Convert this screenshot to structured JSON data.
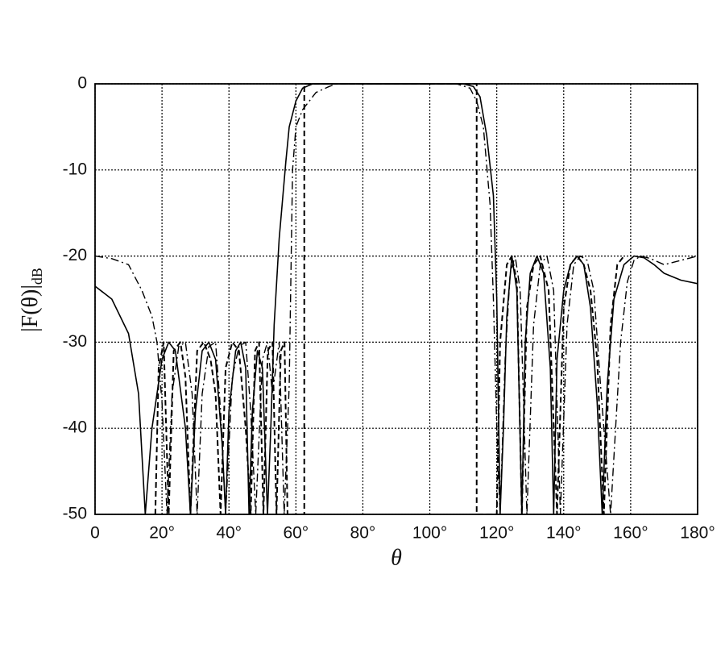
{
  "chart_data": {
    "type": "line",
    "xlabel": "θ",
    "ylabel": "|F(θ)|",
    "ylabel_subscript": "dB",
    "xlim": [
      0,
      180
    ],
    "ylim": [
      -50,
      0
    ],
    "xticks": [
      0,
      {
        "value": 20,
        "label": "20°"
      },
      {
        "value": 40,
        "label": "40°"
      },
      {
        "value": 60,
        "label": "60°"
      },
      {
        "value": 80,
        "label": "80°"
      },
      {
        "value": 100,
        "label": "100°"
      },
      {
        "value": 120,
        "label": "120°"
      },
      {
        "value": 140,
        "label": "140°"
      },
      {
        "value": 160,
        "label": "160°"
      },
      {
        "value": 180,
        "label": "180°"
      }
    ],
    "yticks": [
      0,
      -10,
      -20,
      -30,
      -40,
      -50
    ],
    "grid": true,
    "series": [
      {
        "color": "#000000",
        "dash": "solid",
        "width": 1.6,
        "x": [
          0,
          5,
          10,
          13,
          15,
          17,
          20,
          22,
          24,
          27,
          28.5,
          30,
          32,
          34,
          36,
          38,
          39,
          40,
          42,
          43.5,
          45,
          46,
          47,
          48.5,
          50,
          51.5,
          52.5,
          53.5,
          55,
          57,
          58,
          60,
          62,
          65,
          110,
          113,
          115,
          117,
          119,
          120,
          121,
          122,
          123,
          124.5,
          126,
          127.5,
          128.5,
          130,
          132,
          134,
          136,
          137,
          138,
          140,
          142,
          144,
          146,
          148,
          150,
          151.5,
          153,
          155,
          158,
          161,
          164,
          167,
          170,
          175,
          180
        ],
        "values": [
          -23.5,
          -25,
          -29,
          -36,
          -50,
          -40,
          -32,
          -30,
          -31,
          -40,
          -50,
          -38,
          -31,
          -30,
          -32,
          -42,
          -50,
          -38,
          -31,
          -30,
          -33,
          -50,
          -38,
          -31,
          -33,
          -50,
          -40,
          -28,
          -18,
          -9,
          -5,
          -2,
          -0.5,
          0,
          0,
          -0.3,
          -1.5,
          -6,
          -13,
          -25,
          -50,
          -40,
          -27,
          -20,
          -24,
          -50,
          -30,
          -22,
          -20,
          -22,
          -33,
          -50,
          -32,
          -24,
          -21,
          -20,
          -21,
          -26,
          -37,
          -50,
          -35,
          -25,
          -21,
          -20,
          -20.2,
          -21,
          -22,
          -22.8,
          -23.2
        ]
      },
      {
        "color": "#000000",
        "dash": "dashdot",
        "width": 1.4,
        "x": [
          0,
          5,
          10,
          14,
          17,
          18.5,
          20,
          21.5,
          23,
          25,
          27,
          29,
          30.5,
          32,
          34,
          36,
          37.5,
          39,
          41,
          43,
          45,
          46.5,
          48,
          50,
          51.5,
          53,
          55,
          56.5,
          58,
          59,
          60,
          62,
          66,
          70,
          72,
          108,
          112,
          114,
          116,
          118,
          119,
          120,
          121,
          122.5,
          124,
          125.5,
          127,
          129,
          131,
          133,
          135,
          137,
          139,
          141,
          143,
          145,
          147,
          149,
          151,
          154,
          157,
          159,
          161,
          163,
          166,
          170,
          175,
          180
        ],
        "values": [
          -20,
          -20.3,
          -21,
          -24,
          -27,
          -30,
          -37,
          -50,
          -36,
          -30.5,
          -30,
          -36,
          -50,
          -36,
          -30.5,
          -30,
          -38,
          -50,
          -34,
          -30.5,
          -30,
          -38,
          -50,
          -32,
          -30,
          -36,
          -30,
          -50,
          -35,
          -10,
          -5,
          -3,
          -1,
          -0.3,
          0,
          0,
          -0.5,
          -2,
          -5,
          -14,
          -25,
          -40,
          -50,
          -32,
          -22,
          -20,
          -24,
          -50,
          -28,
          -21,
          -20,
          -24,
          -50,
          -28,
          -21,
          -20,
          -20.5,
          -24,
          -35,
          -50,
          -30,
          -23,
          -20.5,
          -20,
          -20.3,
          -21,
          -20.5,
          -20
        ]
      },
      {
        "color": "#000000",
        "dash": "dashed",
        "width": 2,
        "x": [
          18,
          19,
          20.5,
          22,
          23.5,
          25.5,
          27,
          28.5,
          30.5,
          32.5,
          34.5,
          36,
          37.5,
          39,
          41,
          43,
          45,
          46.5,
          47.8,
          49,
          50.3,
          51.6,
          53,
          54.2,
          55.5,
          56.6,
          57.5,
          62.5,
          62.5,
          64,
          112,
          114,
          114,
          120,
          121,
          123,
          124.5,
          126,
          127.5,
          129,
          131,
          133,
          135.5,
          138,
          140,
          142,
          144,
          146,
          148,
          150,
          152,
          154,
          156,
          158
        ],
        "values": [
          -50,
          -33,
          -30,
          -50,
          -31,
          -30,
          -34,
          -50,
          -31,
          -30,
          -32,
          -36,
          -50,
          -33,
          -30,
          -31,
          -40,
          -50,
          -31,
          -30,
          -50,
          -31,
          -30,
          -50,
          -31,
          -30,
          -50,
          -50,
          0,
          0,
          0,
          0,
          -50,
          -50,
          -30,
          -21,
          -20,
          -23,
          -50,
          -26,
          -21,
          -20,
          -24,
          -50,
          -26,
          -21,
          -20,
          -21,
          -24,
          -32,
          -50,
          -28,
          -21,
          -20
        ]
      }
    ]
  }
}
